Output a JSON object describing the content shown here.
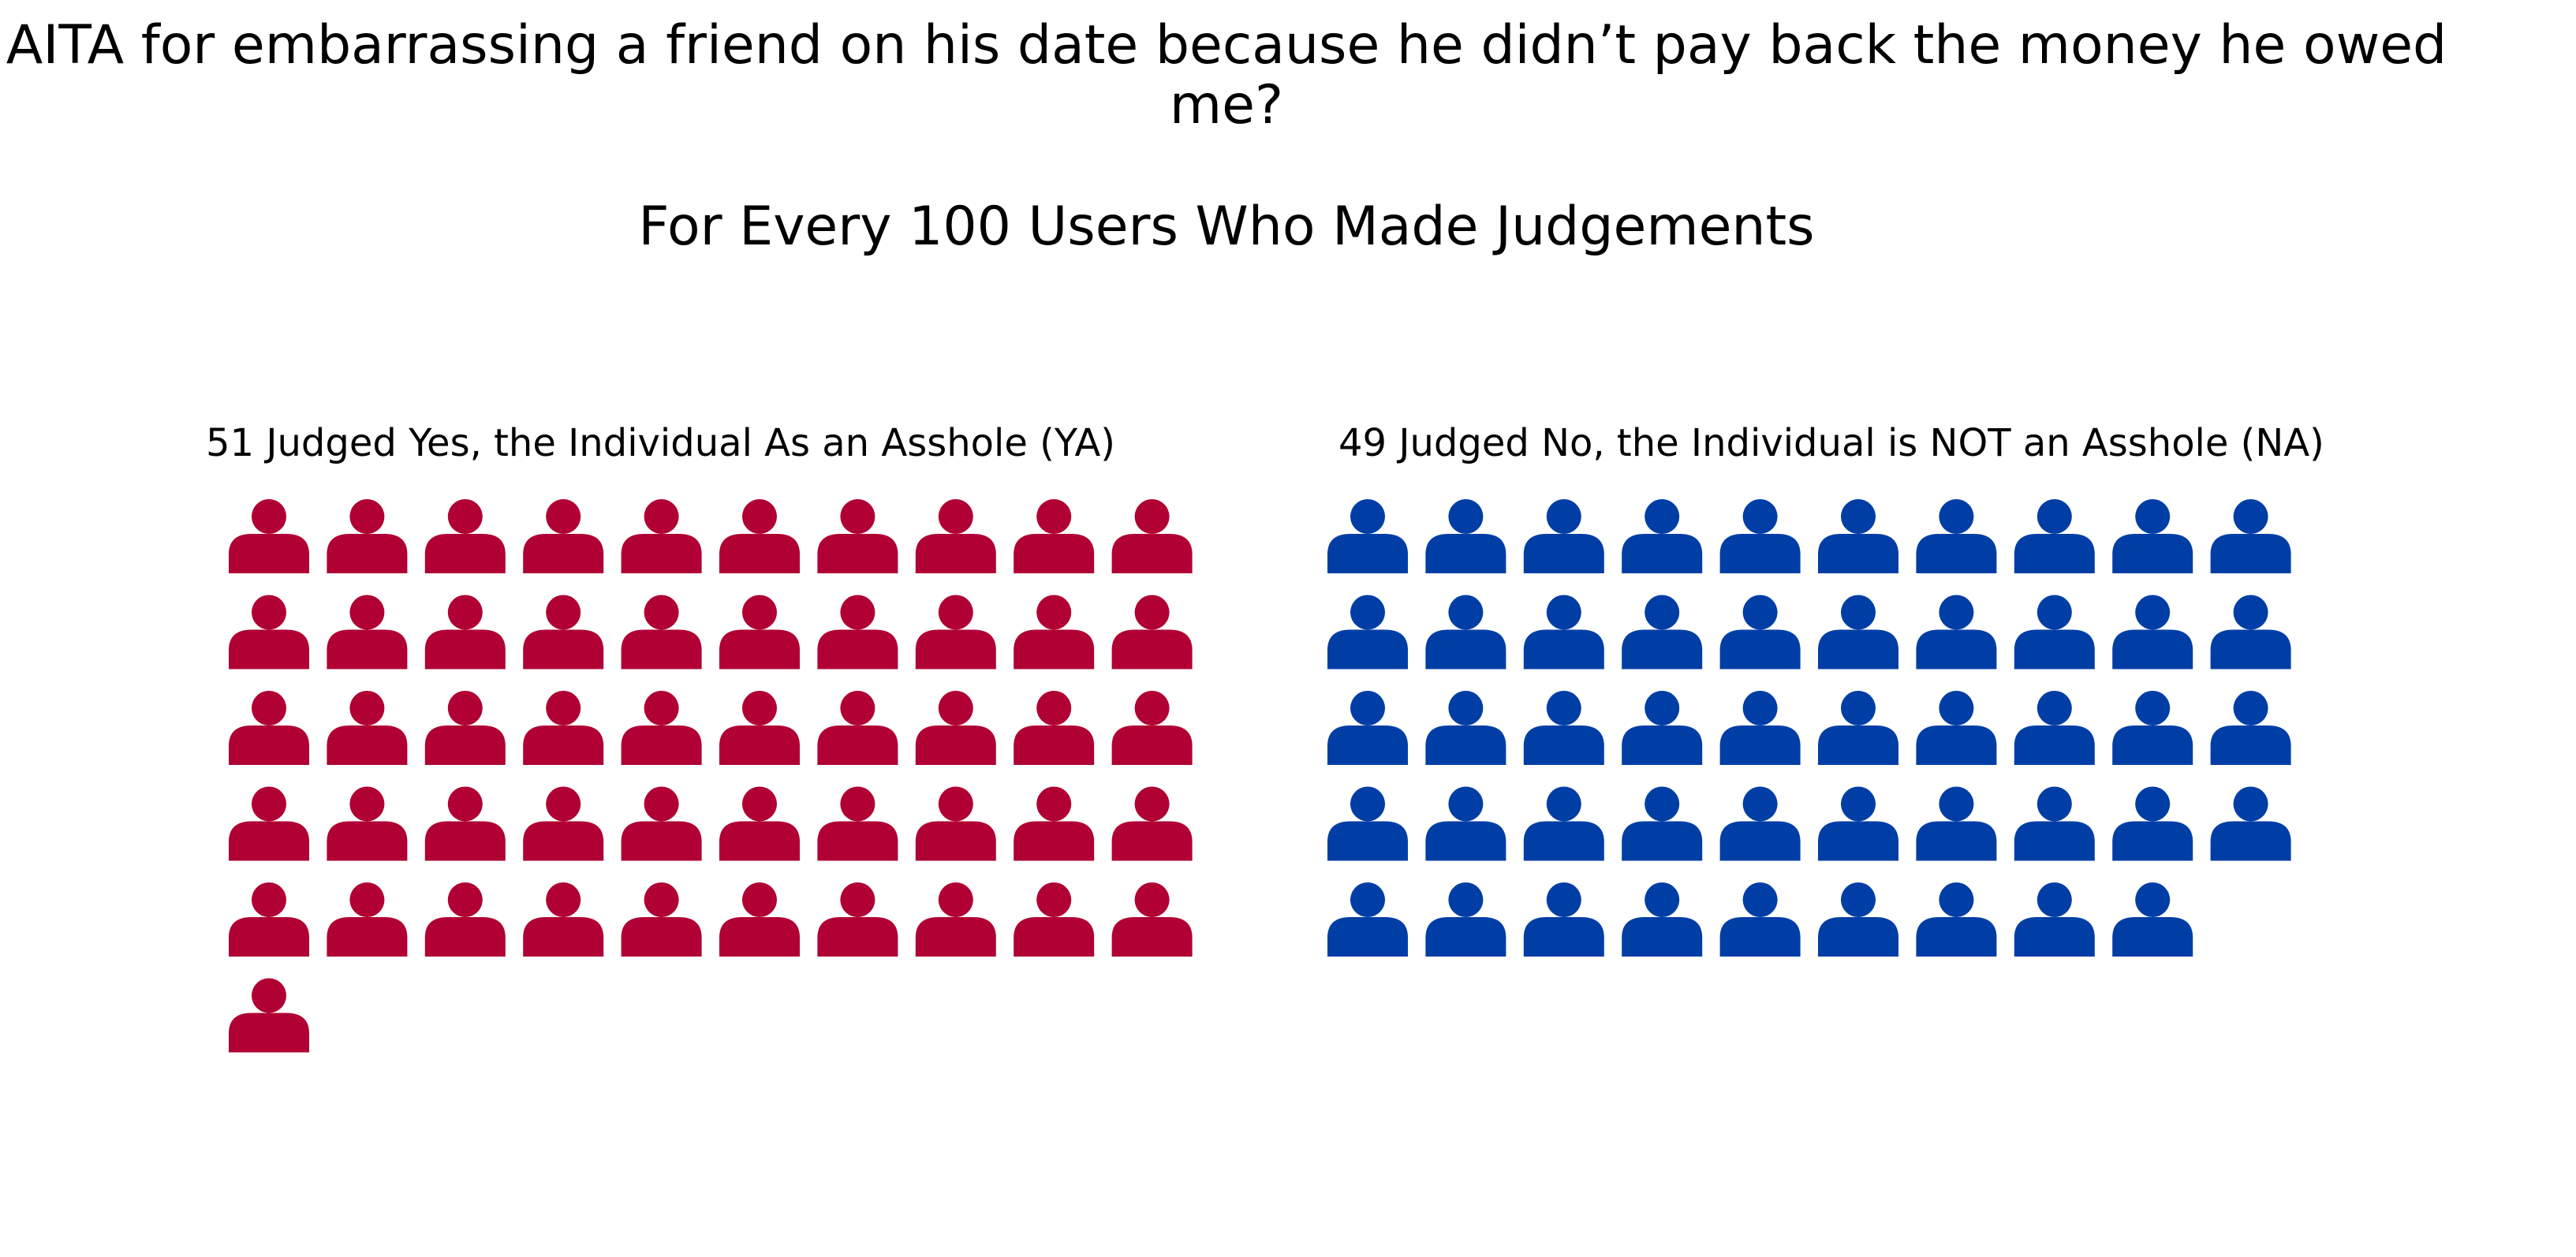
{
  "title_lines": [
    "AITA for embarrassing a friend on his date because he didn’t pay back the money he owed",
    "me?"
  ],
  "subtitle": "For Every 100 Users Who Made Judgements",
  "chart_data": {
    "type": "waffle",
    "total": 100,
    "columns_per_row": 10,
    "icon": "person-icon",
    "groups": [
      {
        "key": "ya",
        "label": "51 Judged Yes, the Individual As an Asshole (YA)",
        "value": 51,
        "color": "#b00034"
      },
      {
        "key": "na",
        "label": "49 Judged No, the Individual is NOT an Asshole (NA)",
        "value": 49,
        "color": "#003ea6"
      }
    ]
  }
}
